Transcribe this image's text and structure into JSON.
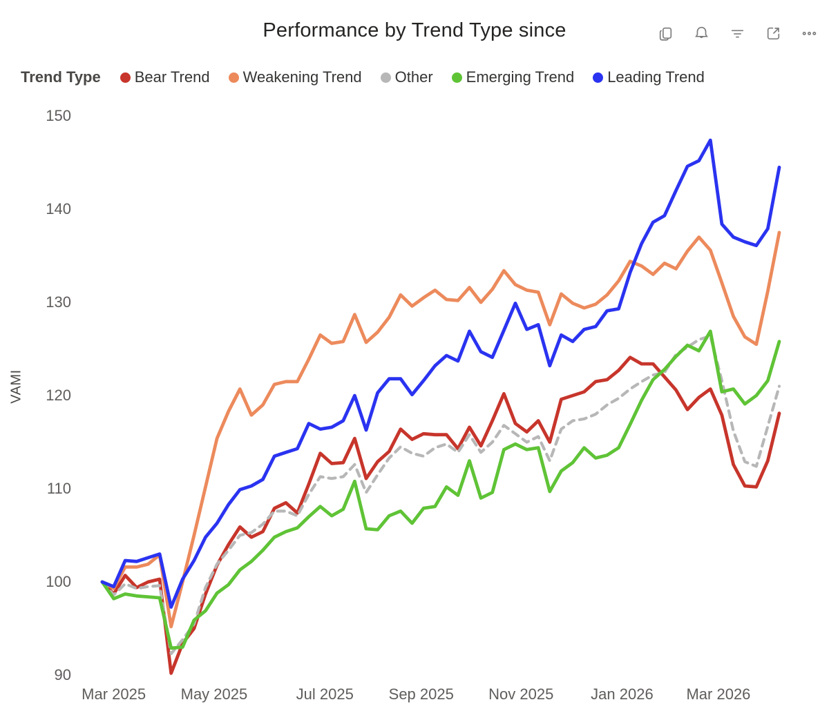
{
  "header": {
    "title": "Performance by Trend Type since",
    "toolbar_icons": [
      "copy-icon",
      "alert-icon",
      "filter-icon",
      "focus-mode-icon",
      "more-options-icon"
    ]
  },
  "legend": {
    "title": "Trend Type",
    "items": [
      {
        "label": "Bear Trend",
        "color": "#c7352b"
      },
      {
        "label": "Weakening Trend",
        "color": "#ec8a5c"
      },
      {
        "label": "Other",
        "color": "#b7b7b7"
      },
      {
        "label": "Emerging Trend",
        "color": "#5fc336"
      },
      {
        "label": "Leading Trend",
        "color": "#2a33f0"
      }
    ]
  },
  "chart_data": {
    "type": "line",
    "title": "Performance by Trend Type since",
    "xlabel": "",
    "ylabel": "VAMI",
    "ylim": [
      90,
      150
    ],
    "y_ticks": [
      90,
      100,
      110,
      120,
      130,
      140,
      150
    ],
    "grid": false,
    "legend_position": "top",
    "x_ticks": [
      {
        "label": "Mar 2025",
        "i": 1.0
      },
      {
        "label": "May 2025",
        "i": 9.75
      },
      {
        "label": "Jul 2025",
        "i": 19.4
      },
      {
        "label": "Sep 2025",
        "i": 27.8
      },
      {
        "label": "Nov 2025",
        "i": 36.5
      },
      {
        "label": "Jan 2026",
        "i": 45.3
      },
      {
        "label": "Mar 2026",
        "i": 53.7
      }
    ],
    "dates": [
      "2025-02-28",
      "2025-03-07",
      "2025-03-14",
      "2025-03-21",
      "2025-03-28",
      "2025-04-04",
      "2025-04-11",
      "2025-04-18",
      "2025-04-25",
      "2025-05-02",
      "2025-05-09",
      "2025-05-16",
      "2025-05-23",
      "2025-05-30",
      "2025-06-06",
      "2025-06-13",
      "2025-06-20",
      "2025-06-27",
      "2025-07-04",
      "2025-07-11",
      "2025-07-18",
      "2025-07-25",
      "2025-08-01",
      "2025-08-08",
      "2025-08-15",
      "2025-08-22",
      "2025-08-29",
      "2025-09-05",
      "2025-09-12",
      "2025-09-19",
      "2025-09-26",
      "2025-10-03",
      "2025-10-10",
      "2025-10-17",
      "2025-10-24",
      "2025-10-31",
      "2025-11-07",
      "2025-11-14",
      "2025-11-21",
      "2025-11-28",
      "2025-12-05",
      "2025-12-12",
      "2025-12-19",
      "2025-12-26",
      "2026-01-02",
      "2026-01-09",
      "2026-01-16",
      "2026-01-23",
      "2026-01-30",
      "2026-02-06",
      "2026-02-13",
      "2026-02-20",
      "2026-02-27",
      "2026-03-06",
      "2026-03-13",
      "2026-03-20",
      "2026-03-27",
      "2026-04-03",
      "2026-04-10",
      "2026-04-17"
    ],
    "series": [
      {
        "name": "Bear Trend",
        "color": "#c7352b",
        "dash": false,
        "values": [
          100.0,
          98.7,
          100.7,
          99.4,
          100.0,
          100.3,
          90.2,
          93.4,
          95.0,
          98.7,
          101.8,
          104.0,
          105.9,
          104.8,
          105.4,
          107.9,
          108.5,
          107.4,
          110.5,
          113.8,
          112.7,
          112.8,
          115.4,
          111.1,
          112.9,
          114.0,
          116.4,
          115.3,
          115.9,
          115.8,
          115.8,
          114.3,
          116.6,
          114.6,
          117.3,
          120.2,
          117.0,
          116.1,
          117.3,
          115.0,
          119.6,
          120.0,
          120.4,
          121.5,
          121.7,
          122.7,
          124.1,
          123.4,
          123.4,
          122.0,
          120.6,
          118.5,
          119.8,
          120.7,
          117.9,
          112.6,
          110.3,
          110.2,
          113.0,
          118.1
        ]
      },
      {
        "name": "Weakening Trend",
        "color": "#ec8a5c",
        "dash": false,
        "values": [
          100.0,
          99.3,
          101.6,
          101.6,
          101.9,
          102.9,
          95.2,
          100.0,
          105.0,
          110.2,
          115.4,
          118.3,
          120.7,
          117.9,
          119.0,
          121.2,
          121.5,
          121.5,
          123.9,
          126.5,
          125.6,
          125.8,
          128.7,
          125.7,
          126.8,
          128.4,
          130.8,
          129.6,
          130.5,
          131.3,
          130.3,
          130.2,
          131.6,
          130.0,
          131.4,
          133.4,
          131.9,
          131.3,
          131.1,
          127.6,
          130.9,
          129.9,
          129.4,
          129.8,
          130.8,
          132.3,
          134.4,
          133.9,
          133.0,
          134.2,
          133.6,
          135.5,
          137.0,
          135.6,
          132.1,
          128.5,
          126.3,
          125.5,
          131.2,
          137.5
        ]
      },
      {
        "name": "Other",
        "color": "#b7b7b7",
        "dash": true,
        "values": [
          100.0,
          98.6,
          99.8,
          99.3,
          99.5,
          99.6,
          92.3,
          93.8,
          95.5,
          99.4,
          101.9,
          103.4,
          105.0,
          105.3,
          106.2,
          107.6,
          107.6,
          107.1,
          109.4,
          111.3,
          111.1,
          111.3,
          112.6,
          109.6,
          111.5,
          113.3,
          114.5,
          113.8,
          113.5,
          114.4,
          114.8,
          113.9,
          115.8,
          113.9,
          115.0,
          116.8,
          115.9,
          115.0,
          115.6,
          113.0,
          116.4,
          117.3,
          117.5,
          118.0,
          119.0,
          119.7,
          120.7,
          121.5,
          122.2,
          122.5,
          124.4,
          125.2,
          126.0,
          126.4,
          121.6,
          116.2,
          112.9,
          112.4,
          116.7,
          121.0
        ]
      },
      {
        "name": "Emerging Trend",
        "color": "#5fc336",
        "dash": false,
        "values": [
          100.0,
          98.2,
          98.7,
          98.5,
          98.4,
          98.3,
          92.9,
          93.0,
          95.9,
          96.9,
          98.8,
          99.7,
          101.3,
          102.2,
          103.4,
          104.8,
          105.4,
          105.8,
          107.0,
          108.1,
          107.1,
          107.8,
          110.8,
          105.7,
          105.6,
          107.1,
          107.6,
          106.3,
          107.9,
          108.1,
          110.2,
          109.3,
          113.0,
          109.0,
          109.6,
          114.2,
          114.8,
          114.2,
          114.4,
          109.7,
          111.9,
          112.8,
          114.4,
          113.3,
          113.6,
          114.4,
          116.9,
          119.5,
          121.7,
          122.8,
          124.2,
          125.4,
          124.8,
          126.9,
          120.4,
          120.7,
          119.1,
          120.0,
          121.6,
          125.8
        ]
      },
      {
        "name": "Leading Trend",
        "color": "#2a33f0",
        "dash": false,
        "values": [
          100.0,
          99.5,
          102.3,
          102.2,
          102.6,
          103.0,
          97.3,
          100.3,
          102.3,
          104.8,
          106.3,
          108.3,
          109.9,
          110.3,
          111.0,
          113.5,
          113.9,
          114.3,
          117.0,
          116.4,
          116.6,
          117.3,
          120.0,
          116.3,
          120.3,
          121.8,
          121.8,
          120.1,
          121.6,
          123.2,
          124.3,
          123.7,
          126.9,
          124.7,
          124.1,
          127.0,
          129.9,
          127.1,
          127.6,
          123.2,
          126.5,
          125.8,
          127.1,
          127.4,
          129.1,
          129.3,
          133.2,
          136.3,
          138.6,
          139.3,
          142.0,
          144.6,
          145.2,
          147.4,
          138.4,
          137.0,
          136.5,
          136.1,
          137.9,
          144.5
        ]
      }
    ]
  }
}
